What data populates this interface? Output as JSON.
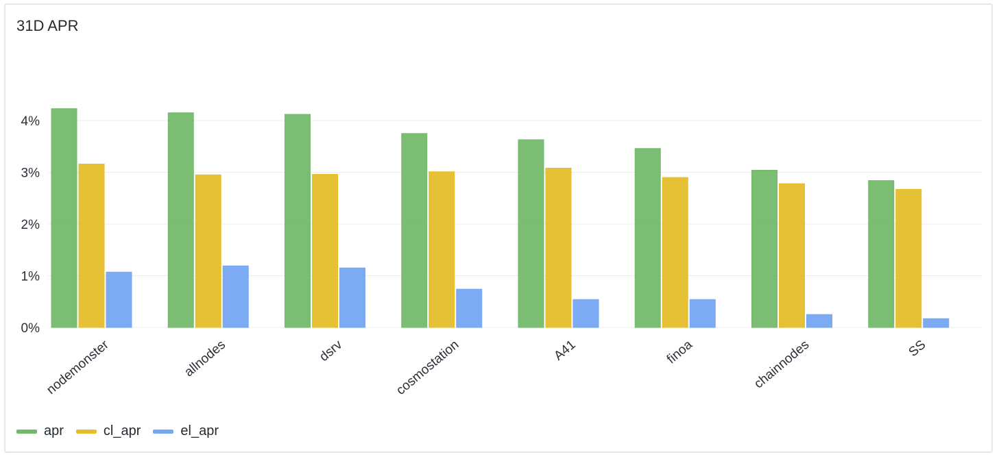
{
  "panel": {
    "title": "31D APR"
  },
  "colors": {
    "apr": "#73b96b",
    "cl_apr": "#e5be2a",
    "el_apr": "#76a7f2",
    "grid": "#ececec"
  },
  "chart_data": {
    "type": "bar",
    "title": "31D APR",
    "xlabel": "",
    "ylabel": "",
    "ylim": [
      0,
      4
    ],
    "y_ticks": [
      "0%",
      "1%",
      "2%",
      "3%",
      "4%"
    ],
    "categories": [
      "nodemonster",
      "allnodes",
      "dsrv",
      "cosmostation",
      "A41",
      "finoa",
      "chainnodes",
      "SS"
    ],
    "series": [
      {
        "name": "apr",
        "values": [
          4.23,
          4.15,
          4.12,
          3.75,
          3.63,
          3.46,
          3.04,
          2.84
        ]
      },
      {
        "name": "cl_apr",
        "values": [
          3.16,
          2.95,
          2.96,
          3.01,
          3.08,
          2.9,
          2.78,
          2.67
        ]
      },
      {
        "name": "el_apr",
        "values": [
          1.07,
          1.19,
          1.15,
          0.74,
          0.54,
          0.54,
          0.25,
          0.17
        ]
      }
    ],
    "grid": true,
    "legend": "bottom-left"
  }
}
